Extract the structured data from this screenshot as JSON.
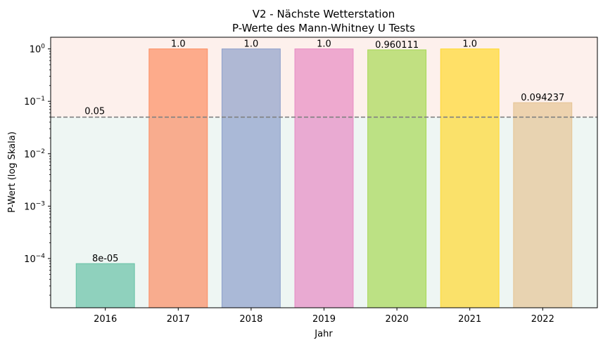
{
  "chart_data": {
    "type": "bar",
    "title": "V2 - Nächste Wetterstation",
    "subtitle": "P-Werte des Mann-Whitney U Tests",
    "xlabel": "Jahr",
    "ylabel": "P-Wert (log Skala)",
    "yscale": "log",
    "ylim": [
      1.15e-05,
      1.67
    ],
    "categories": [
      "2016",
      "2017",
      "2018",
      "2019",
      "2020",
      "2021",
      "2022"
    ],
    "values": [
      8e-05,
      1.0,
      1.0,
      1.0,
      0.960111,
      1.0,
      0.094237
    ],
    "value_labels": [
      "8e-05",
      "1.0",
      "1.0",
      "1.0",
      "0.960111",
      "1.0",
      "0.094237"
    ],
    "colors": [
      "#66c2a5",
      "#fc8d62",
      "#8da0cb",
      "#e78ac3",
      "#a6d854",
      "#ffd92f",
      "#e5c494"
    ],
    "threshold": {
      "value": 0.05,
      "label": "0.05",
      "color": "#808080"
    },
    "regions": {
      "above_color": "#fdf0ec",
      "below_color": "#eef6f3"
    },
    "yticks": [
      {
        "value": 0.0001,
        "base": "10",
        "exp": "−4"
      },
      {
        "value": 0.001,
        "base": "10",
        "exp": "−3"
      },
      {
        "value": 0.01,
        "base": "10",
        "exp": "−2"
      },
      {
        "value": 0.1,
        "base": "10",
        "exp": "−1"
      },
      {
        "value": 1,
        "base": "10",
        "exp": "0"
      }
    ],
    "grid": false,
    "legend": "none"
  }
}
